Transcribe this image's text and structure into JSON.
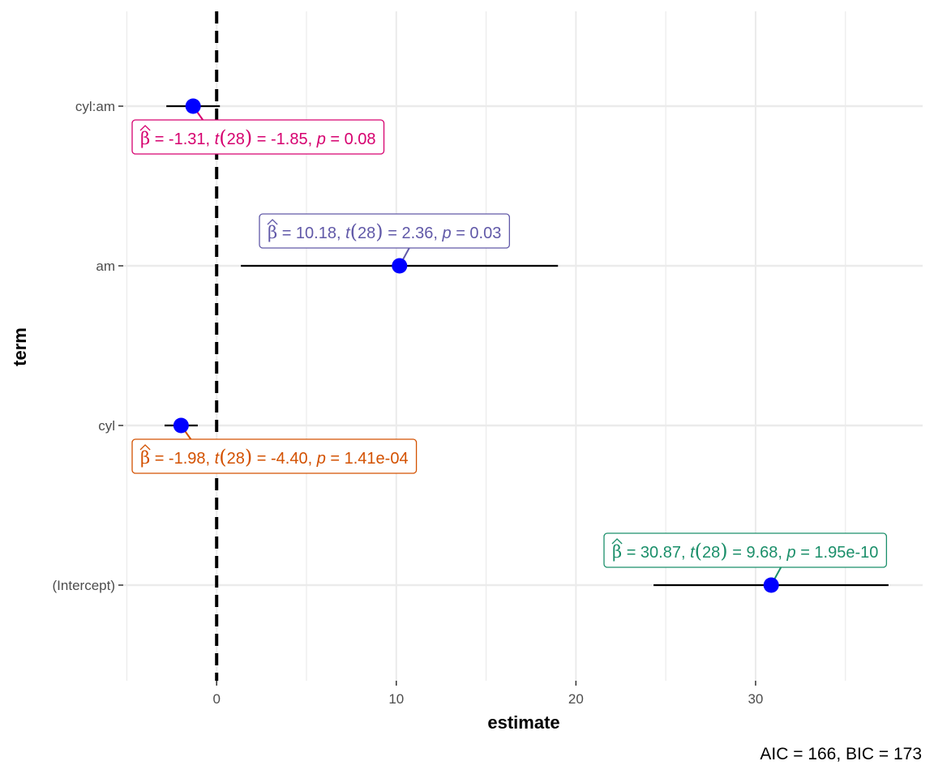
{
  "chart_data": {
    "type": "scatter",
    "variant": "coefficient-plot",
    "title": "",
    "xlabel": "estimate",
    "ylabel": "term",
    "xlim": [
      -5.2,
      39.3
    ],
    "x_ticks": [
      0,
      10,
      20,
      30
    ],
    "grid": true,
    "reference_line": {
      "x": 0,
      "style": "dashed"
    },
    "point_color": "#0000ff",
    "terms": [
      {
        "term": "cyl:am",
        "estimate": -1.31,
        "ci_low": -2.8,
        "ci_high": 0.18,
        "label": {
          "beta": "-1.31",
          "df": "28",
          "t": "-1.85",
          "p": "0.08"
        },
        "label_position": "below",
        "color": "#d6006f"
      },
      {
        "term": "am",
        "estimate": 10.18,
        "ci_low": 1.35,
        "ci_high": 19.0,
        "label": {
          "beta": "10.18",
          "df": "28",
          "t": "2.36",
          "p": "0.03"
        },
        "label_position": "above",
        "color": "#6159a8"
      },
      {
        "term": "cyl",
        "estimate": -1.98,
        "ci_low": -2.9,
        "ci_high": -1.05,
        "label": {
          "beta": "-1.98",
          "df": "28",
          "t": "-4.40",
          "p": "1.41e-04"
        },
        "label_position": "below",
        "color": "#d35100"
      },
      {
        "term": "(Intercept)",
        "estimate": 30.87,
        "ci_low": 24.32,
        "ci_high": 37.4,
        "label": {
          "beta": "30.87",
          "df": "28",
          "t": "9.68",
          "p": "1.95e-10"
        },
        "label_position": "above",
        "color": "#1b8f6a"
      }
    ]
  },
  "caption": "AIC = 166, BIC = 173"
}
